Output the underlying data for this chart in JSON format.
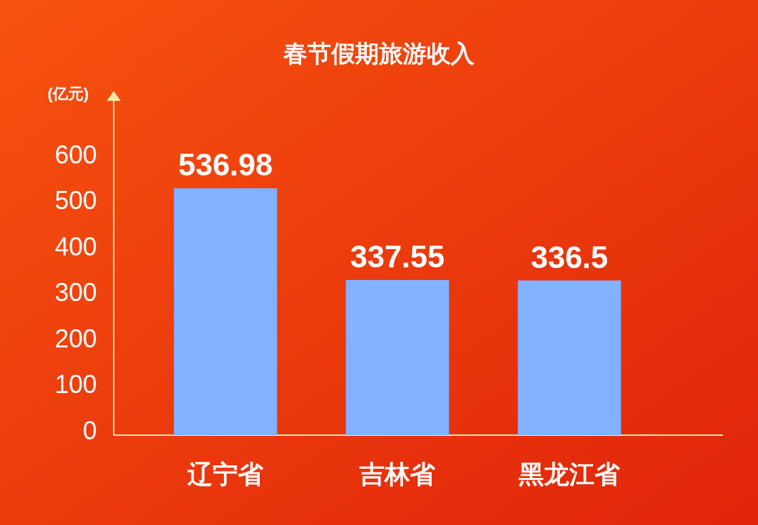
{
  "chart_data": {
    "type": "bar",
    "title": "春节假期旅游收入",
    "ylabel": "(亿元)",
    "categories": [
      "辽宁省",
      "吉林省",
      "黑龙江省"
    ],
    "values": [
      536.98,
      337.55,
      336.5
    ],
    "color": "#82b1ff",
    "ylim": [
      0,
      730
    ],
    "yticks": [
      0,
      100,
      200,
      300,
      400,
      500,
      600
    ],
    "data_labels": true,
    "grid": false
  }
}
